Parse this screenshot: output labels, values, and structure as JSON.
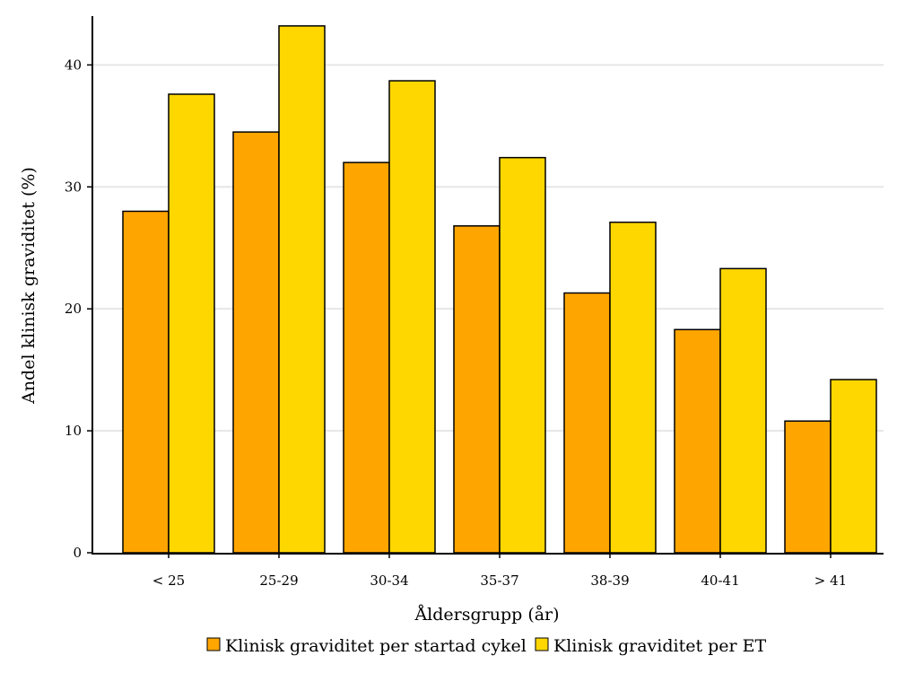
{
  "chart_data": {
    "type": "bar",
    "title": "",
    "xlabel": "Åldersgrupp (år)",
    "ylabel": "Andel klinisk graviditet (%)",
    "ylim": [
      0,
      44
    ],
    "yticks": [
      0,
      10,
      20,
      30,
      40
    ],
    "grid": true,
    "legend_position": "bottom",
    "categories": [
      "< 25",
      "25-29",
      "30-34",
      "35-37",
      "38-39",
      "40-41",
      "> 41"
    ],
    "series": [
      {
        "name": "Klinisk graviditet per startad cykel",
        "color": "#FFA500",
        "values": [
          28.0,
          34.5,
          32.0,
          26.8,
          21.3,
          18.3,
          10.8
        ]
      },
      {
        "name": "Klinisk graviditet per ET",
        "color": "#FFD700",
        "values": [
          37.6,
          43.2,
          38.7,
          32.4,
          27.1,
          23.3,
          14.2
        ]
      }
    ]
  }
}
